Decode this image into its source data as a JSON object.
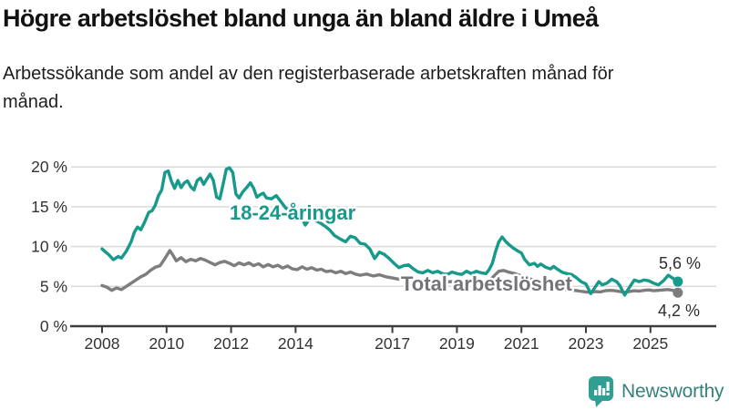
{
  "chart_data": {
    "type": "line",
    "title": "Högre arbetslöshet bland unga än bland äldre i Umeå",
    "subtitle": "Arbetssökande som andel av den registerbaserade arbetskraften månad för månad.",
    "unit": "%",
    "xlim": [
      2008,
      2027
    ],
    "ylim": [
      0,
      21
    ],
    "grid": "horizontal",
    "x_ticks": [
      "2008",
      "2010",
      "2012",
      "2014",
      "2017",
      "2019",
      "2021",
      "2023",
      "2025"
    ],
    "x_tick_years": [
      2008,
      2010,
      2012,
      2014,
      2017,
      2019,
      2021,
      2023,
      2025
    ],
    "y_ticks": [
      0,
      5,
      10,
      15,
      20
    ],
    "y_tick_labels": [
      "0 %",
      "5 %",
      "10 %",
      "15 %",
      "20 %"
    ],
    "series": [
      {
        "name": "Total arbetslöshet",
        "color": "#7d7d7e",
        "label_color": "#737478",
        "end_label": "4,2 %",
        "end_value": 4.2,
        "points": [
          [
            2008.0,
            5.1
          ],
          [
            2008.15,
            4.9
          ],
          [
            2008.3,
            4.5
          ],
          [
            2008.45,
            4.8
          ],
          [
            2008.6,
            4.6
          ],
          [
            2008.75,
            5.0
          ],
          [
            2008.9,
            5.4
          ],
          [
            2009.05,
            5.8
          ],
          [
            2009.2,
            6.2
          ],
          [
            2009.35,
            6.5
          ],
          [
            2009.5,
            7.0
          ],
          [
            2009.65,
            7.4
          ],
          [
            2009.8,
            7.6
          ],
          [
            2009.95,
            8.5
          ],
          [
            2010.1,
            9.5
          ],
          [
            2010.2,
            8.9
          ],
          [
            2010.3,
            8.2
          ],
          [
            2010.45,
            8.6
          ],
          [
            2010.6,
            8.1
          ],
          [
            2010.75,
            8.4
          ],
          [
            2010.9,
            8.2
          ],
          [
            2011.05,
            8.5
          ],
          [
            2011.2,
            8.3
          ],
          [
            2011.35,
            8.0
          ],
          [
            2011.5,
            7.7
          ],
          [
            2011.65,
            8.0
          ],
          [
            2011.8,
            8.15
          ],
          [
            2011.95,
            7.9
          ],
          [
            2012.1,
            7.6
          ],
          [
            2012.25,
            7.95
          ],
          [
            2012.4,
            7.7
          ],
          [
            2012.55,
            7.95
          ],
          [
            2012.7,
            7.6
          ],
          [
            2012.85,
            7.85
          ],
          [
            2013.0,
            7.45
          ],
          [
            2013.15,
            7.75
          ],
          [
            2013.3,
            7.45
          ],
          [
            2013.45,
            7.65
          ],
          [
            2013.6,
            7.3
          ],
          [
            2013.75,
            7.55
          ],
          [
            2013.9,
            7.2
          ],
          [
            2014.05,
            7.1
          ],
          [
            2014.2,
            7.45
          ],
          [
            2014.35,
            7.15
          ],
          [
            2014.5,
            7.35
          ],
          [
            2014.65,
            7.05
          ],
          [
            2014.8,
            7.15
          ],
          [
            2014.95,
            6.85
          ],
          [
            2015.1,
            6.95
          ],
          [
            2015.25,
            6.7
          ],
          [
            2015.4,
            6.9
          ],
          [
            2015.55,
            6.6
          ],
          [
            2015.7,
            6.8
          ],
          [
            2015.85,
            6.55
          ],
          [
            2016.0,
            6.4
          ],
          [
            2016.2,
            6.55
          ],
          [
            2016.4,
            6.3
          ],
          [
            2016.6,
            6.45
          ],
          [
            2016.8,
            6.2
          ],
          [
            2017.0,
            6.05
          ],
          [
            2017.2,
            5.9
          ],
          [
            2017.4,
            6.0
          ],
          [
            2017.6,
            5.8
          ],
          [
            2017.8,
            5.9
          ],
          [
            2018.0,
            5.7
          ],
          [
            2018.2,
            5.6
          ],
          [
            2018.4,
            5.7
          ],
          [
            2018.6,
            5.5
          ],
          [
            2018.8,
            5.6
          ],
          [
            2019.0,
            5.5
          ],
          [
            2019.2,
            5.4
          ],
          [
            2019.4,
            5.5
          ],
          [
            2019.6,
            5.35
          ],
          [
            2019.8,
            5.4
          ],
          [
            2020.0,
            5.7
          ],
          [
            2020.15,
            6.3
          ],
          [
            2020.3,
            6.9
          ],
          [
            2020.45,
            7.0
          ],
          [
            2020.6,
            6.8
          ],
          [
            2020.8,
            6.6
          ],
          [
            2021.0,
            6.3
          ],
          [
            2021.2,
            6.0
          ],
          [
            2021.4,
            5.8
          ],
          [
            2021.6,
            5.6
          ],
          [
            2021.8,
            5.3
          ],
          [
            2022.0,
            5.1
          ],
          [
            2022.2,
            4.8
          ],
          [
            2022.35,
            4.6
          ],
          [
            2022.5,
            4.4
          ],
          [
            2022.65,
            4.5
          ],
          [
            2022.8,
            4.4
          ],
          [
            2023.0,
            4.3
          ],
          [
            2023.15,
            4.25
          ],
          [
            2023.3,
            4.35
          ],
          [
            2023.45,
            4.3
          ],
          [
            2023.6,
            4.45
          ],
          [
            2023.75,
            4.5
          ],
          [
            2023.9,
            4.45
          ],
          [
            2024.05,
            4.35
          ],
          [
            2024.2,
            4.25
          ],
          [
            2024.35,
            4.35
          ],
          [
            2024.5,
            4.45
          ],
          [
            2024.65,
            4.4
          ],
          [
            2024.8,
            4.5
          ],
          [
            2024.95,
            4.55
          ],
          [
            2025.1,
            4.45
          ],
          [
            2025.25,
            4.5
          ],
          [
            2025.4,
            4.55
          ],
          [
            2025.55,
            4.6
          ],
          [
            2025.7,
            4.5
          ],
          [
            2025.85,
            4.2
          ]
        ]
      },
      {
        "name": "18-24-åringar",
        "color": "#17998c",
        "label_color": "#17998c",
        "end_label": "5,6 %",
        "end_value": 5.6,
        "points": [
          [
            2008.0,
            9.7
          ],
          [
            2008.1,
            9.35
          ],
          [
            2008.2,
            9.0
          ],
          [
            2008.35,
            8.35
          ],
          [
            2008.5,
            8.75
          ],
          [
            2008.6,
            8.55
          ],
          [
            2008.75,
            9.4
          ],
          [
            2008.9,
            10.6
          ],
          [
            2009.0,
            11.8
          ],
          [
            2009.1,
            12.45
          ],
          [
            2009.2,
            12.1
          ],
          [
            2009.3,
            12.9
          ],
          [
            2009.45,
            14.3
          ],
          [
            2009.55,
            14.5
          ],
          [
            2009.65,
            15.2
          ],
          [
            2009.75,
            16.4
          ],
          [
            2009.85,
            17.1
          ],
          [
            2009.95,
            19.3
          ],
          [
            2010.05,
            19.5
          ],
          [
            2010.15,
            18.2
          ],
          [
            2010.25,
            17.3
          ],
          [
            2010.35,
            18.3
          ],
          [
            2010.45,
            17.4
          ],
          [
            2010.55,
            18.0
          ],
          [
            2010.65,
            18.25
          ],
          [
            2010.75,
            17.5
          ],
          [
            2010.85,
            17.1
          ],
          [
            2010.95,
            18.3
          ],
          [
            2011.05,
            18.6
          ],
          [
            2011.15,
            17.8
          ],
          [
            2011.25,
            18.5
          ],
          [
            2011.35,
            19.1
          ],
          [
            2011.45,
            18.3
          ],
          [
            2011.55,
            16.2
          ],
          [
            2011.65,
            16.0
          ],
          [
            2011.75,
            17.8
          ],
          [
            2011.85,
            19.7
          ],
          [
            2011.95,
            19.9
          ],
          [
            2012.05,
            19.3
          ],
          [
            2012.15,
            16.6
          ],
          [
            2012.25,
            16.1
          ],
          [
            2012.35,
            16.8
          ],
          [
            2012.5,
            17.5
          ],
          [
            2012.6,
            18.0
          ],
          [
            2012.7,
            17.3
          ],
          [
            2012.8,
            16.2
          ],
          [
            2012.9,
            16.5
          ],
          [
            2013.0,
            16.7
          ],
          [
            2013.1,
            16.1
          ],
          [
            2013.25,
            16.0
          ],
          [
            2013.4,
            16.4
          ],
          [
            2013.55,
            15.6
          ],
          [
            2013.7,
            14.8
          ],
          [
            2013.85,
            14.5
          ],
          [
            2014.0,
            14.2
          ],
          [
            2014.15,
            13.9
          ],
          [
            2014.3,
            12.7
          ],
          [
            2014.45,
            13.5
          ],
          [
            2014.6,
            13.3
          ],
          [
            2014.75,
            13.0
          ],
          [
            2014.9,
            12.6
          ],
          [
            2015.05,
            12.1
          ],
          [
            2015.2,
            11.4
          ],
          [
            2015.4,
            10.9
          ],
          [
            2015.55,
            10.6
          ],
          [
            2015.7,
            11.3
          ],
          [
            2015.85,
            11.1
          ],
          [
            2016.0,
            10.4
          ],
          [
            2016.15,
            10.3
          ],
          [
            2016.3,
            9.7
          ],
          [
            2016.45,
            8.5
          ],
          [
            2016.6,
            9.3
          ],
          [
            2016.75,
            9.0
          ],
          [
            2016.9,
            8.5
          ],
          [
            2017.05,
            7.9
          ],
          [
            2017.2,
            7.35
          ],
          [
            2017.35,
            7.6
          ],
          [
            2017.5,
            7.7
          ],
          [
            2017.65,
            7.2
          ],
          [
            2017.8,
            6.8
          ],
          [
            2017.95,
            6.7
          ],
          [
            2018.1,
            7.0
          ],
          [
            2018.25,
            6.7
          ],
          [
            2018.4,
            6.9
          ],
          [
            2018.55,
            6.6
          ],
          [
            2018.7,
            6.5
          ],
          [
            2018.85,
            6.8
          ],
          [
            2019.0,
            6.6
          ],
          [
            2019.15,
            6.5
          ],
          [
            2019.3,
            6.9
          ],
          [
            2019.45,
            6.6
          ],
          [
            2019.6,
            6.9
          ],
          [
            2019.75,
            6.7
          ],
          [
            2019.9,
            6.6
          ],
          [
            2020.0,
            7.1
          ],
          [
            2020.1,
            7.9
          ],
          [
            2020.2,
            9.4
          ],
          [
            2020.3,
            10.6
          ],
          [
            2020.4,
            11.2
          ],
          [
            2020.5,
            10.7
          ],
          [
            2020.6,
            10.3
          ],
          [
            2020.75,
            9.8
          ],
          [
            2020.9,
            9.4
          ],
          [
            2021.0,
            9.2
          ],
          [
            2021.1,
            8.4
          ],
          [
            2021.25,
            7.7
          ],
          [
            2021.4,
            7.9
          ],
          [
            2021.5,
            7.5
          ],
          [
            2021.6,
            7.8
          ],
          [
            2021.75,
            7.4
          ],
          [
            2021.9,
            7.2
          ],
          [
            2022.0,
            7.5
          ],
          [
            2022.1,
            7.2
          ],
          [
            2022.25,
            6.8
          ],
          [
            2022.4,
            6.6
          ],
          [
            2022.55,
            6.5
          ],
          [
            2022.7,
            6.1
          ],
          [
            2022.85,
            5.6
          ],
          [
            2023.0,
            5.3
          ],
          [
            2023.15,
            4.1
          ],
          [
            2023.25,
            4.7
          ],
          [
            2023.4,
            5.6
          ],
          [
            2023.5,
            5.2
          ],
          [
            2023.65,
            5.4
          ],
          [
            2023.8,
            5.9
          ],
          [
            2023.95,
            5.6
          ],
          [
            2024.05,
            5.1
          ],
          [
            2024.2,
            3.9
          ],
          [
            2024.35,
            4.9
          ],
          [
            2024.5,
            5.8
          ],
          [
            2024.65,
            5.6
          ],
          [
            2024.8,
            5.8
          ],
          [
            2024.95,
            5.7
          ],
          [
            2025.1,
            5.4
          ],
          [
            2025.25,
            5.2
          ],
          [
            2025.4,
            5.7
          ],
          [
            2025.55,
            6.4
          ],
          [
            2025.7,
            6.0
          ],
          [
            2025.85,
            5.6
          ]
        ]
      }
    ],
    "colors": {
      "grid": "#dadada",
      "axis": "#3d3d3d",
      "tick_text": "#333333"
    }
  },
  "footer": {
    "brand": "Newsworthy",
    "logo_icon": "newsworthy-bar-chart-bubble-icon",
    "brand_color": "#36817c",
    "icon_color": "#2f9e93"
  }
}
